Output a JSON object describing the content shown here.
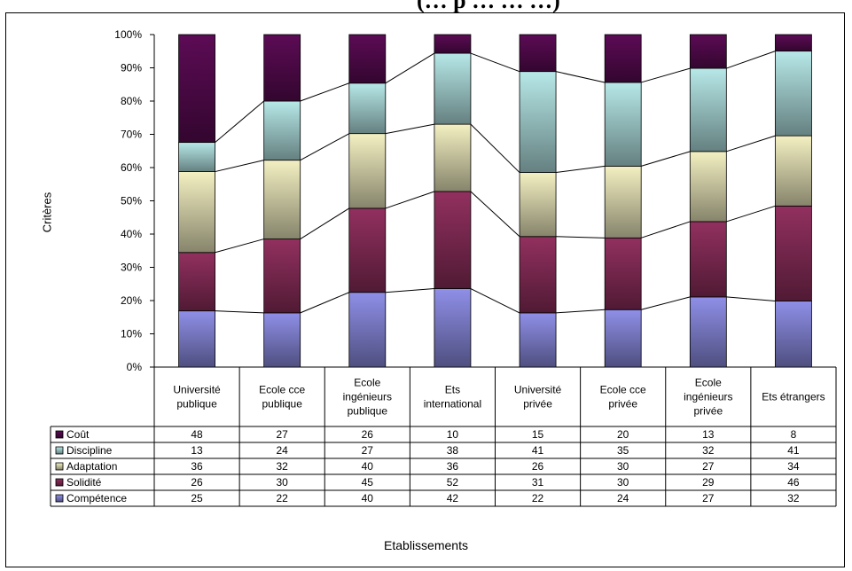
{
  "header": {
    "partial_title": "(… p … … …)"
  },
  "chart_data": {
    "type": "bar",
    "stacked": "percent",
    "ylabel": "Critères",
    "xlabel": "Etablissements",
    "yticks": [
      "0%",
      "10%",
      "20%",
      "30%",
      "40%",
      "50%",
      "60%",
      "70%",
      "80%",
      "90%",
      "100%"
    ],
    "ylim": [
      0,
      100
    ],
    "categories": [
      [
        "Université",
        "publique"
      ],
      [
        "Ecole cce",
        "publique"
      ],
      [
        "Ecole",
        "ingénieurs",
        "publique"
      ],
      [
        "Ets",
        "international"
      ],
      [
        "Université",
        "privée"
      ],
      [
        "Ecole cce",
        "privée"
      ],
      [
        "Ecole",
        "ingénieurs",
        "privée"
      ],
      [
        "Ets étrangers"
      ]
    ],
    "series": [
      {
        "name": "Compétence",
        "values": [
          25,
          22,
          40,
          42,
          22,
          24,
          27,
          32
        ],
        "color": "#8f8fe8"
      },
      {
        "name": "Solidité",
        "values": [
          26,
          30,
          45,
          52,
          31,
          30,
          29,
          46
        ],
        "color": "#92305f"
      },
      {
        "name": "Adaptation",
        "values": [
          36,
          32,
          40,
          36,
          26,
          30,
          27,
          34
        ],
        "color": "#f3f0c2"
      },
      {
        "name": "Discipline",
        "values": [
          13,
          24,
          27,
          38,
          41,
          35,
          32,
          41
        ],
        "color": "#b7e8e8"
      },
      {
        "name": "Coût",
        "values": [
          48,
          27,
          26,
          10,
          15,
          20,
          13,
          8
        ],
        "color": "#5c0b55"
      }
    ],
    "data_table_order": [
      "Coût",
      "Discipline",
      "Adaptation",
      "Solidité",
      "Compétence"
    ],
    "grid": false,
    "series_lines": true,
    "legend": "data-table"
  }
}
